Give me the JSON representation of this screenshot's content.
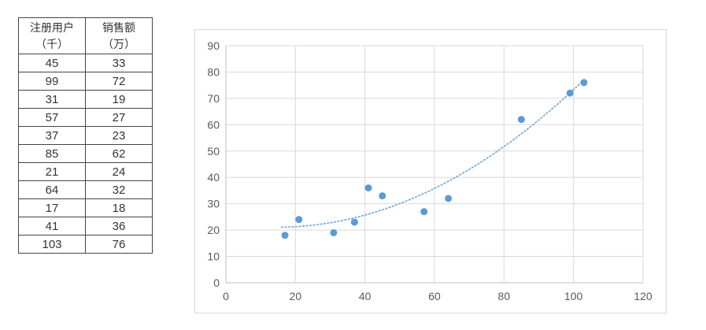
{
  "page": {
    "background": "#ffffff"
  },
  "table": {
    "columns": [
      {
        "line1": "注册用户",
        "line2": "（千）"
      },
      {
        "line1": "销售额",
        "line2": "（万）"
      }
    ],
    "rows": [
      [
        45,
        33
      ],
      [
        99,
        72
      ],
      [
        31,
        19
      ],
      [
        57,
        27
      ],
      [
        37,
        23
      ],
      [
        85,
        62
      ],
      [
        21,
        24
      ],
      [
        64,
        32
      ],
      [
        17,
        18
      ],
      [
        41,
        36
      ],
      [
        103,
        76
      ]
    ]
  },
  "chart_data": {
    "type": "scatter",
    "title": "",
    "xlabel": "",
    "ylabel": "",
    "x": [
      45,
      99,
      31,
      57,
      37,
      85,
      21,
      64,
      17,
      41,
      103
    ],
    "y": [
      33,
      72,
      19,
      27,
      23,
      62,
      24,
      32,
      18,
      36,
      76
    ],
    "xlim": [
      0,
      120
    ],
    "ylim": [
      0,
      90
    ],
    "xticks": [
      0,
      20,
      40,
      60,
      80,
      100,
      120
    ],
    "yticks": [
      0,
      10,
      20,
      30,
      40,
      50,
      60,
      70,
      80,
      90
    ],
    "grid": true,
    "legend": "none",
    "marker_color": "#5b9bd5",
    "gridline_color": "#d9d9d9",
    "axis_line_color": "#bfbfbf",
    "axis_label_color": "#595959",
    "trendline": {
      "style": "dotted",
      "type": "polynomial_order_2",
      "coefficients": {
        "a": 0.00717,
        "b": -0.2102,
        "c": 22.62
      },
      "x_range": [
        16,
        103.5
      ],
      "color": "#5b9bd5"
    }
  }
}
